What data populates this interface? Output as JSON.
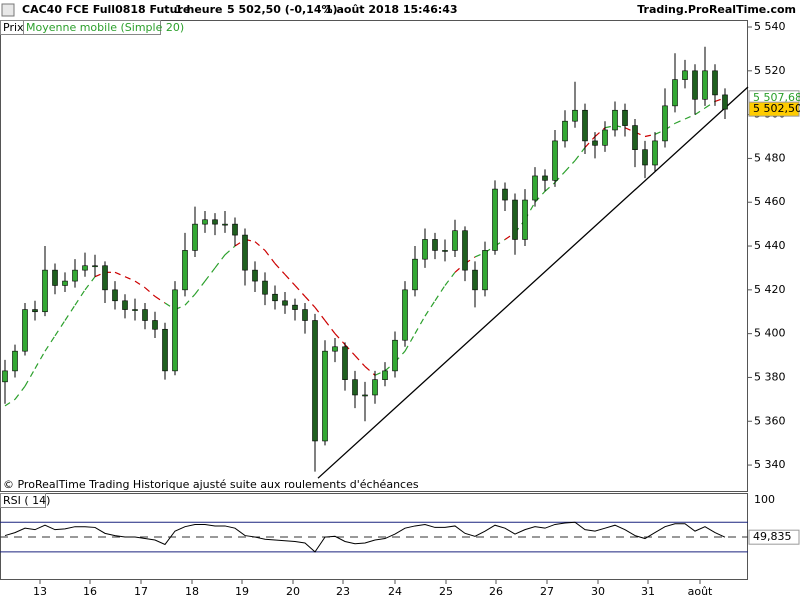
{
  "header": {
    "instrument": "CAC40 FCE Full0818 Future",
    "timeframe": "1 heure",
    "price": "5 502,50 (-0,14%)",
    "datetime": "1 août 2018 15:46:43",
    "site": "Trading.ProRealTime.com"
  },
  "chart_data": [
    {
      "type": "candlestick",
      "price_name": "Prix",
      "footnote": "© ProRealTime Trading  Historique ajusté suite aux roulements d'échéances",
      "up_color": "#33a833",
      "down_color": "#1f5f1f",
      "xlim": [
        -0.5,
        74.3
      ],
      "ylim": [
        5327.7,
        5543.2
      ],
      "yticks": [
        {
          "value": 5340,
          "label": "5 340"
        },
        {
          "value": 5360,
          "label": "5 360"
        },
        {
          "value": 5380,
          "label": "5 380"
        },
        {
          "value": 5400,
          "label": "5 400"
        },
        {
          "value": 5420,
          "label": "5 420"
        },
        {
          "value": 5440,
          "label": "5 440"
        },
        {
          "value": 5460,
          "label": "5 460"
        },
        {
          "value": 5480,
          "label": "5 480"
        },
        {
          "value": 5500,
          "label": "5 500"
        },
        {
          "value": 5520,
          "label": "5 520"
        },
        {
          "value": 5540,
          "label": "5 540"
        }
      ],
      "candles": [
        [
          5378,
          5388,
          5368,
          5383
        ],
        [
          5383,
          5395,
          5380,
          5392
        ],
        [
          5392,
          5414,
          5390,
          5411
        ],
        [
          5411,
          5415,
          5406,
          5410
        ],
        [
          5410,
          5440,
          5408,
          5429
        ],
        [
          5429,
          5432,
          5418,
          5422
        ],
        [
          5422,
          5428,
          5419,
          5424
        ],
        [
          5424,
          5434,
          5421,
          5429
        ],
        [
          5429,
          5437,
          5426,
          5431
        ],
        [
          5431,
          5436,
          5426,
          5431
        ],
        [
          5431,
          5433,
          5414,
          5420
        ],
        [
          5420,
          5424,
          5411,
          5415
        ],
        [
          5415,
          5418,
          5407,
          5411
        ],
        [
          5411,
          5416,
          5406,
          5411
        ],
        [
          5411,
          5414,
          5402,
          5406
        ],
        [
          5406,
          5410,
          5398,
          5402
        ],
        [
          5402,
          5405,
          5379,
          5383
        ],
        [
          5383,
          5424,
          5381,
          5420
        ],
        [
          5420,
          5446,
          5417,
          5438
        ],
        [
          5438,
          5458,
          5435,
          5450
        ],
        [
          5450,
          5456,
          5446,
          5452
        ],
        [
          5452,
          5455,
          5445,
          5450
        ],
        [
          5450,
          5456,
          5446,
          5450
        ],
        [
          5450,
          5453,
          5440,
          5445
        ],
        [
          5445,
          5448,
          5422,
          5429
        ],
        [
          5429,
          5433,
          5419,
          5424
        ],
        [
          5424,
          5428,
          5413,
          5418
        ],
        [
          5418,
          5422,
          5411,
          5415
        ],
        [
          5415,
          5419,
          5409,
          5413
        ],
        [
          5413,
          5416,
          5406,
          5411
        ],
        [
          5411,
          5414,
          5400,
          5406
        ],
        [
          5406,
          5409,
          5337,
          5351
        ],
        [
          5351,
          5397,
          5349,
          5392
        ],
        [
          5392,
          5398,
          5387,
          5394
        ],
        [
          5394,
          5396,
          5374,
          5379
        ],
        [
          5379,
          5383,
          5366,
          5372
        ],
        [
          5372,
          5378,
          5360,
          5372
        ],
        [
          5372,
          5383,
          5368,
          5379
        ],
        [
          5379,
          5387,
          5376,
          5383
        ],
        [
          5383,
          5401,
          5380,
          5397
        ],
        [
          5397,
          5424,
          5394,
          5420
        ],
        [
          5420,
          5440,
          5417,
          5434
        ],
        [
          5434,
          5448,
          5430,
          5443
        ],
        [
          5443,
          5446,
          5434,
          5438
        ],
        [
          5438,
          5443,
          5433,
          5438
        ],
        [
          5438,
          5452,
          5435,
          5447
        ],
        [
          5447,
          5449,
          5424,
          5429
        ],
        [
          5429,
          5433,
          5412,
          5420
        ],
        [
          5420,
          5442,
          5417,
          5438
        ],
        [
          5438,
          5470,
          5436,
          5466
        ],
        [
          5466,
          5469,
          5456,
          5461
        ],
        [
          5461,
          5464,
          5436,
          5443
        ],
        [
          5443,
          5466,
          5440,
          5461
        ],
        [
          5461,
          5476,
          5458,
          5472
        ],
        [
          5472,
          5475,
          5465,
          5470
        ],
        [
          5470,
          5493,
          5467,
          5488
        ],
        [
          5488,
          5502,
          5485,
          5497
        ],
        [
          5497,
          5515,
          5494,
          5502
        ],
        [
          5502,
          5505,
          5482,
          5488
        ],
        [
          5488,
          5492,
          5480,
          5486
        ],
        [
          5486,
          5497,
          5483,
          5493
        ],
        [
          5493,
          5506,
          5490,
          5502
        ],
        [
          5502,
          5505,
          5490,
          5495
        ],
        [
          5495,
          5498,
          5476,
          5484
        ],
        [
          5484,
          5488,
          5471,
          5477
        ],
        [
          5477,
          5492,
          5474,
          5488
        ],
        [
          5488,
          5512,
          5485,
          5504
        ],
        [
          5504,
          5528,
          5501,
          5516
        ],
        [
          5516,
          5525,
          5512,
          5520
        ],
        [
          5520,
          5523,
          5500,
          5507
        ],
        [
          5507,
          5531,
          5504,
          5520
        ],
        [
          5520,
          5523,
          5504,
          5509
        ],
        [
          5509,
          5512,
          5498,
          5502.5
        ]
      ],
      "ma": {
        "name": "Moyenne mobile (Simple 20)",
        "color_below": "#2ca02c",
        "color_above": "#cc0000",
        "values": [
          5367,
          5370,
          5376,
          5384,
          5392,
          5399,
          5406,
          5413,
          5420,
          5426,
          5428,
          5428,
          5426,
          5424,
          5421,
          5417,
          5414,
          5411,
          5413,
          5418,
          5424,
          5430,
          5436,
          5440,
          5443,
          5442,
          5438,
          5432,
          5427,
          5422,
          5417,
          5412,
          5406,
          5400,
          5395,
          5390,
          5385,
          5381,
          5383,
          5387,
          5392,
          5400,
          5408,
          5415,
          5422,
          5428,
          5432,
          5435,
          5437,
          5440,
          5443,
          5446,
          5452,
          5460,
          5465,
          5469,
          5474,
          5479,
          5485,
          5490,
          5494,
          5495,
          5494,
          5492,
          5490,
          5491,
          5493,
          5496,
          5498,
          5500,
          5503,
          5506,
          5507.68
        ]
      },
      "trendline": {
        "x": [
          31.3,
          74.3
        ],
        "y": [
          5334,
          5512.6
        ],
        "color": "#000000"
      },
      "tags": [
        {
          "value": 5507.68,
          "label": "5 507,68",
          "color": "#ffffff",
          "text_color": "#2ca02c"
        },
        {
          "value": 5502.5,
          "label": "5 502,50",
          "color": "#ffcc00",
          "text_color": "#000000"
        }
      ]
    },
    {
      "type": "line",
      "name": "RSI ( 14)",
      "color": "#000000",
      "xlim": [
        -0.5,
        74.3
      ],
      "ylim": [
        -8,
        109.5
      ],
      "yticks": [
        100
      ],
      "levels": [
        70,
        50,
        30
      ],
      "values": [
        52,
        56,
        62,
        60,
        66,
        60,
        61,
        64,
        64,
        63,
        55,
        52,
        50,
        50,
        48,
        46,
        40,
        58,
        64,
        67,
        67,
        65,
        65,
        62,
        52,
        50,
        47,
        46,
        45,
        44,
        42,
        30,
        50,
        51,
        44,
        41,
        42,
        46,
        48,
        54,
        62,
        65,
        67,
        63,
        63,
        65,
        55,
        51,
        58,
        66,
        62,
        54,
        60,
        64,
        62,
        67,
        69,
        70,
        60,
        58,
        62,
        66,
        60,
        52,
        48,
        56,
        64,
        68,
        68,
        58,
        64,
        56,
        49.835
      ],
      "tag": {
        "value": 49.835,
        "label": "49,835"
      },
      "xticks": [
        {
          "value": 3.5,
          "label": "13"
        },
        {
          "value": 8.5,
          "label": "16"
        },
        {
          "value": 13.6,
          "label": "17"
        },
        {
          "value": 18.7,
          "label": "18"
        },
        {
          "value": 23.7,
          "label": "19"
        },
        {
          "value": 28.8,
          "label": "20"
        },
        {
          "value": 33.8,
          "label": "23"
        },
        {
          "value": 39,
          "label": "24"
        },
        {
          "value": 44.1,
          "label": "25"
        },
        {
          "value": 49.1,
          "label": "26"
        },
        {
          "value": 54.2,
          "label": "27"
        },
        {
          "value": 59.3,
          "label": "30"
        },
        {
          "value": 64.3,
          "label": "31"
        },
        {
          "value": 69.5,
          "label": "août"
        }
      ]
    }
  ]
}
